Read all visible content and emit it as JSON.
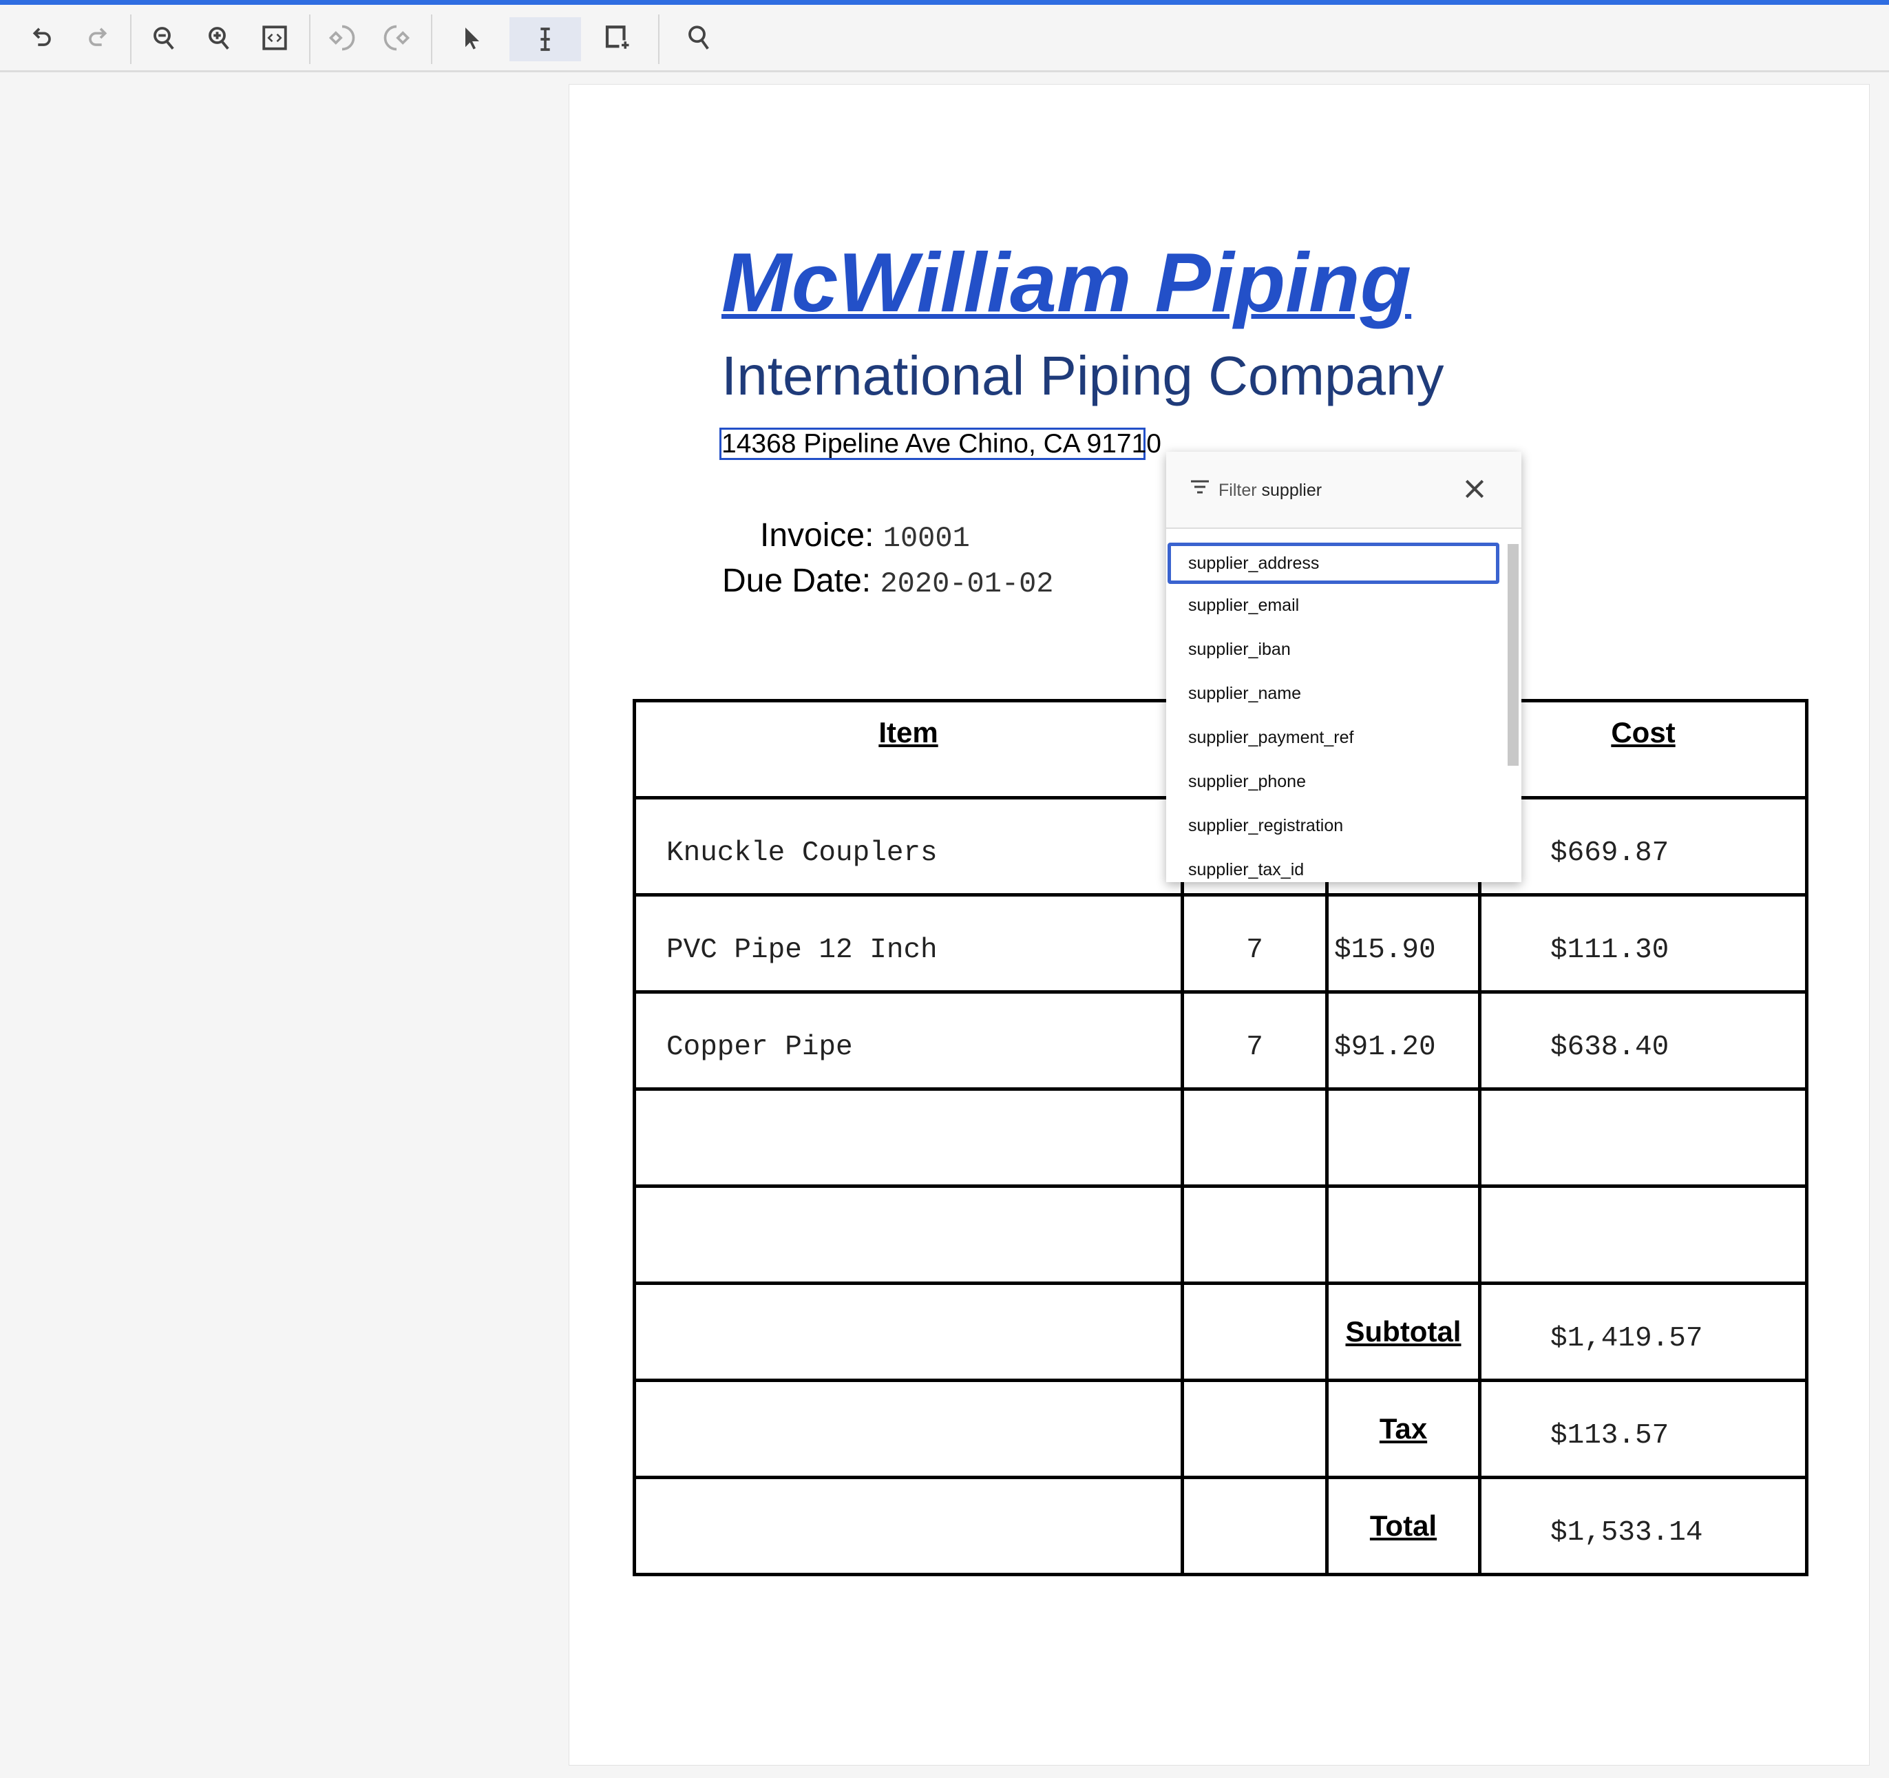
{
  "toolbar": {
    "accent": "#2f6de1",
    "buttons": [
      "undo-icon",
      "redo-icon",
      "zoom-out-icon",
      "zoom-in-icon",
      "fit-page-icon",
      "rotate-left-icon",
      "rotate-right-icon",
      "pointer-icon",
      "text-select-icon",
      "add-region-icon",
      "search-icon"
    ],
    "active": "text-select-icon"
  },
  "document": {
    "company": "McWilliam Piping",
    "subtitle": "International Piping Company",
    "address": "14368 Pipeline Ave Chino, CA 91710",
    "invoice_label": "Invoice:",
    "invoice_value": "10001",
    "due_label": "Due Date:",
    "due_value": "2020-01-02",
    "table": {
      "headers": {
        "item": "Item",
        "cost": "Cost"
      },
      "rows": [
        {
          "item": "Knuckle Couplers",
          "qty": "",
          "price": "",
          "cost": "$669.87"
        },
        {
          "item": "PVC Pipe 12 Inch",
          "qty": "7",
          "price": "$15.90",
          "cost": "$111.30"
        },
        {
          "item": "Copper Pipe",
          "qty": "7",
          "price": "$91.20",
          "cost": "$638.40"
        }
      ],
      "subtotal_label": "Subtotal",
      "subtotal": "$1,419.57",
      "tax_label": "Tax",
      "tax": "$113.57",
      "total_label": "Total",
      "total": "$1,533.14"
    }
  },
  "dropdown": {
    "filter_label": "Filter",
    "filter_value": "supplier",
    "options": [
      "supplier_address",
      "supplier_email",
      "supplier_iban",
      "supplier_name",
      "supplier_payment_ref",
      "supplier_phone",
      "supplier_registration",
      "supplier_tax_id"
    ],
    "selected": "supplier_address"
  }
}
